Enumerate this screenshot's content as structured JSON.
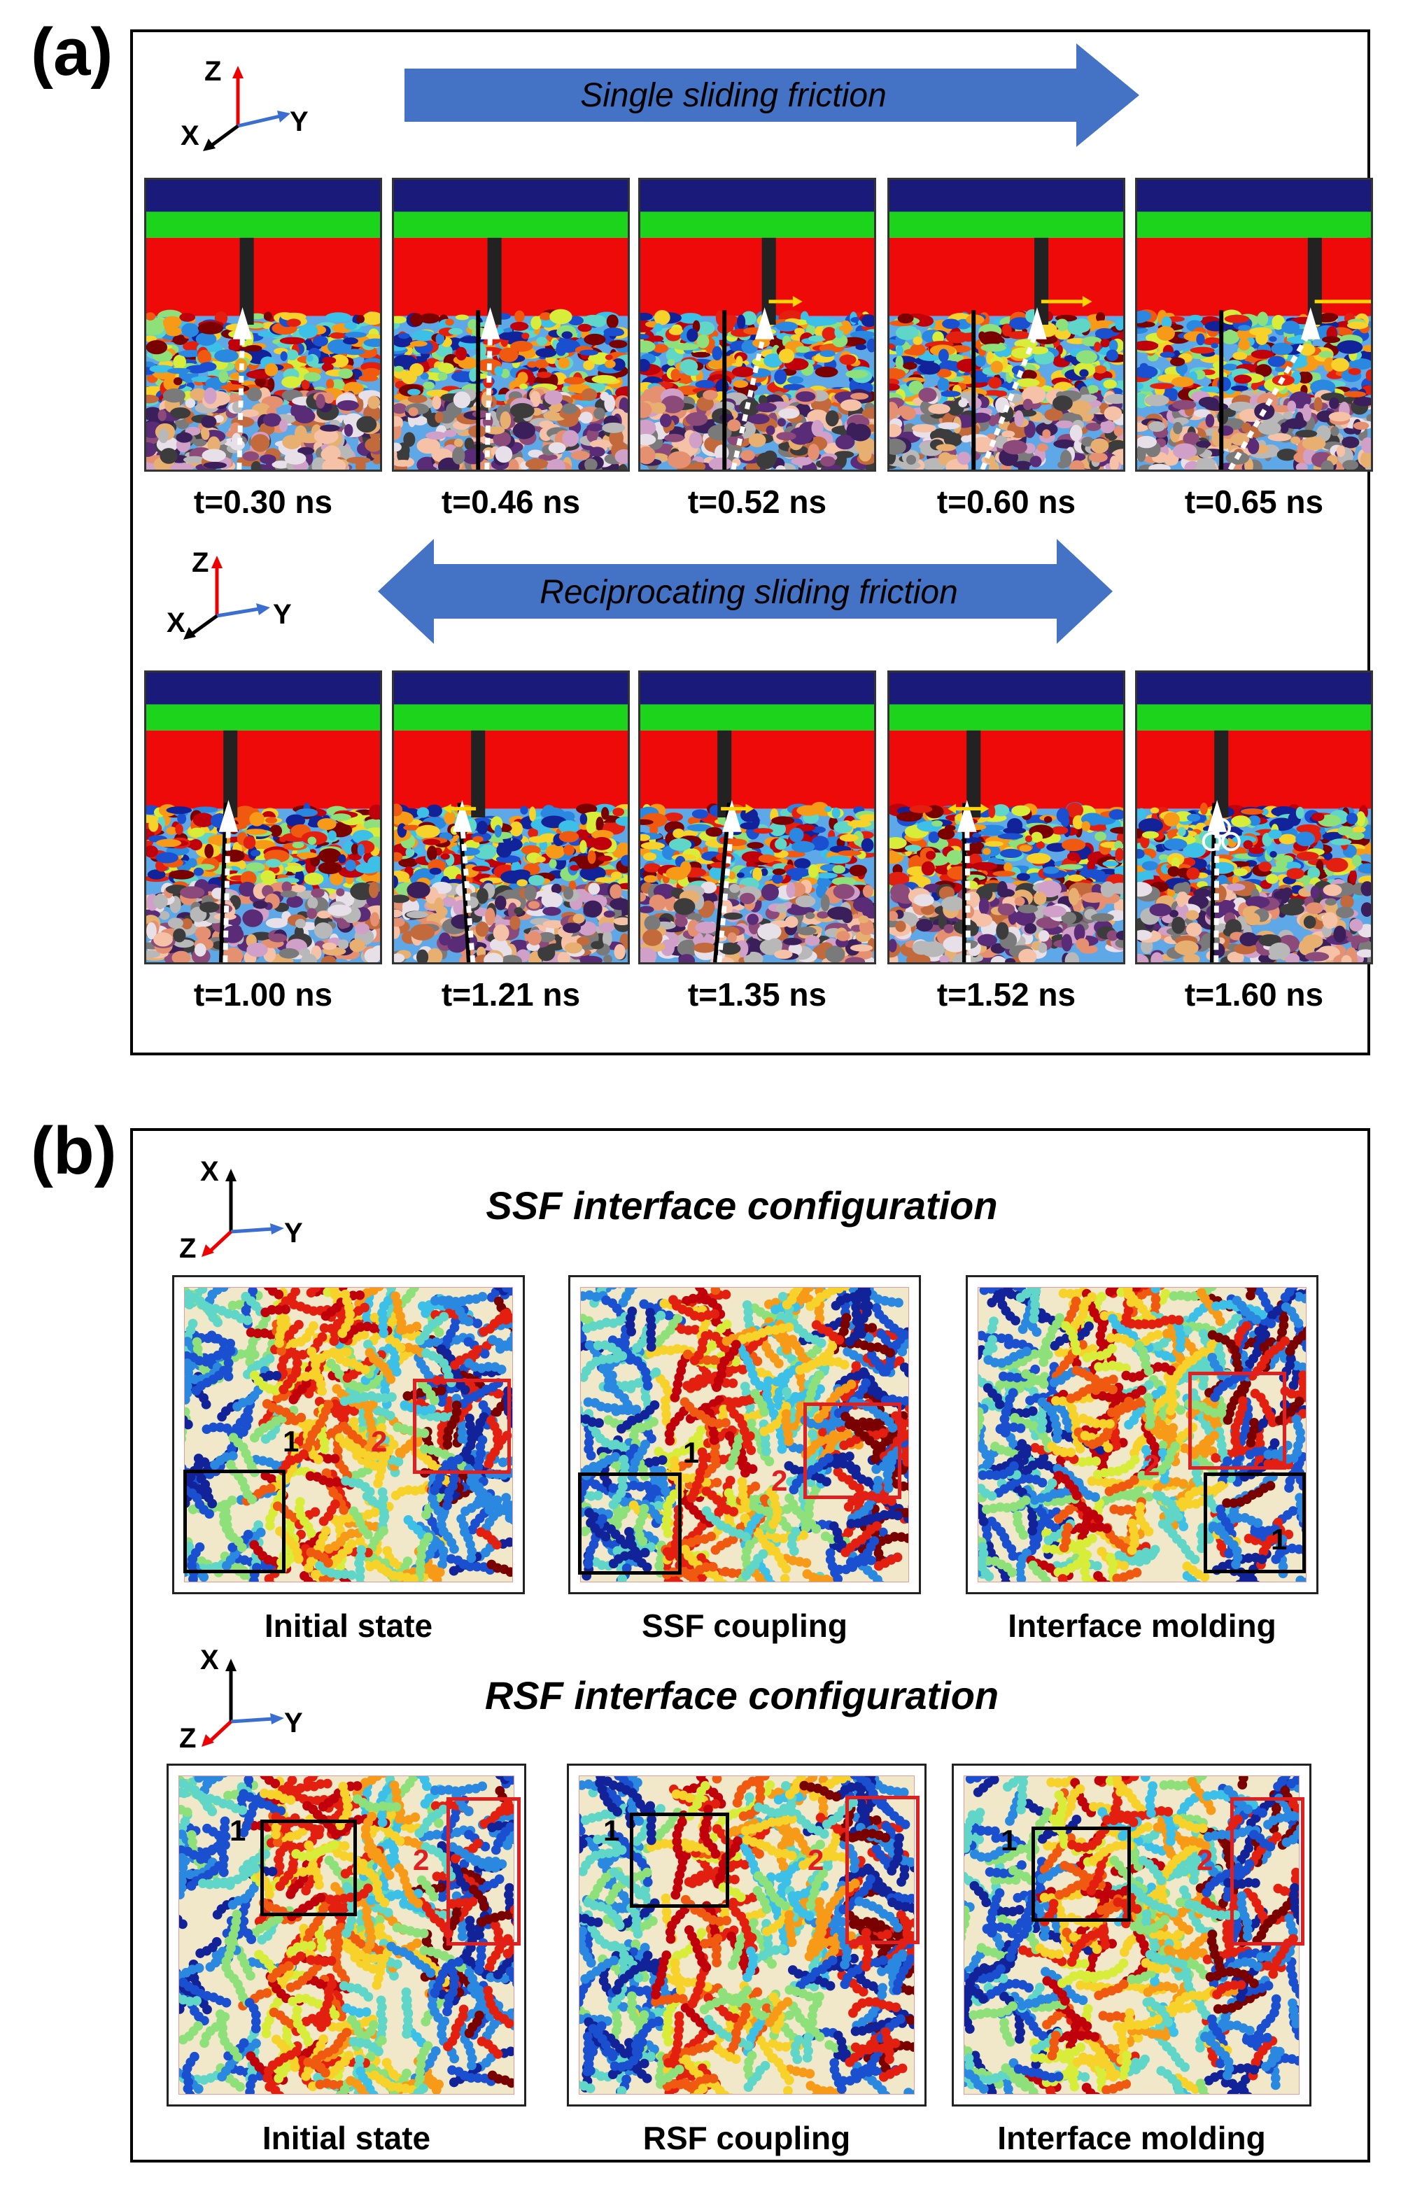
{
  "panel_a": {
    "label": "(a)",
    "axes_top": {
      "z": "Z",
      "x": "X",
      "y": "Y"
    },
    "axes_bottom": {
      "z": "Z",
      "x": "X",
      "y": "Y"
    },
    "single_arrow_label": "Single sliding friction",
    "recip_arrow_label": "Reciprocating sliding friction",
    "row1_times": [
      "t=0.30 ns",
      "t=0.46 ns",
      "t=0.52 ns",
      "t=0.60 ns",
      "t=0.65 ns"
    ],
    "row2_times": [
      "t=1.00 ns",
      "t=1.21 ns",
      "t=1.35 ns",
      "t=1.52 ns",
      "t=1.60 ns"
    ]
  },
  "panel_b": {
    "label": "(b)",
    "axes_top": {
      "x": "X",
      "z": "Z",
      "y": "Y"
    },
    "axes_bottom": {
      "x": "X",
      "z": "Z",
      "y": "Y"
    },
    "ssf_title": "SSF interface configuration",
    "rsf_title": "RSF interface configuration",
    "ssf_captions": [
      "Initial state",
      "SSF coupling",
      "Interface molding"
    ],
    "rsf_captions": [
      "Initial state",
      "RSF coupling",
      "Interface molding"
    ],
    "region_labels": {
      "one": "1",
      "two": "2"
    }
  },
  "colors": {
    "arrow_blue": "#4472c4",
    "substrate_red": "#ef0a0a",
    "layer_green": "#1bd41b",
    "layer_navy": "#1a1a7a",
    "highlight_red": "#e02020",
    "highlight_black": "#000000",
    "arrow_yellow": "#ffd700"
  }
}
